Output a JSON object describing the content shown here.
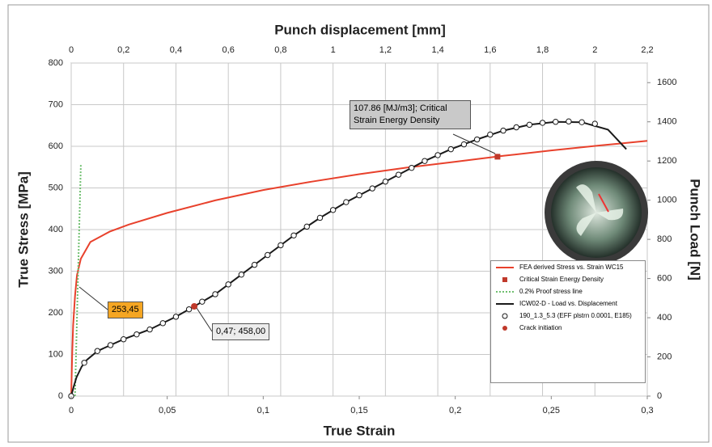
{
  "chart_data": {
    "type": "line",
    "title": "Punch displacement [mm]",
    "x_label": "True Strain",
    "y_label": "True Stress [MPa]",
    "y2_label": "Punch Load [N]",
    "xlim": [
      0,
      0.3
    ],
    "xticks": [
      0,
      {
        "value": 0.05,
        "label": "0,05"
      },
      {
        "value": 0.1,
        "label": "0,1"
      },
      {
        "value": 0.15,
        "label": "0,15"
      },
      {
        "value": 0.2,
        "label": "0,2"
      },
      {
        "value": 0.25,
        "label": "0,25"
      },
      {
        "value": 0.3,
        "label": "0,3"
      }
    ],
    "x2lim": [
      0,
      2.2
    ],
    "x2ticks": [
      0,
      {
        "value": 0.2,
        "label": "0,2"
      },
      {
        "value": 0.4,
        "label": "0,4"
      },
      {
        "value": 0.6,
        "label": "0,6"
      },
      {
        "value": 0.8,
        "label": "0,8"
      },
      1,
      {
        "value": 1.2,
        "label": "1,2"
      },
      {
        "value": 1.4,
        "label": "1,4"
      },
      {
        "value": 1.6,
        "label": "1,6"
      },
      {
        "value": 1.8,
        "label": "1,8"
      },
      2,
      {
        "value": 2.2,
        "label": "2,2"
      }
    ],
    "ylim": [
      0,
      800
    ],
    "yticks": [
      0,
      100,
      200,
      300,
      400,
      500,
      600,
      700,
      800
    ],
    "y2lim": [
      0,
      1700
    ],
    "y2ticks": [
      0,
      200,
      400,
      600,
      800,
      1000,
      1200,
      1400,
      1600
    ],
    "grid": true,
    "legend": "lower right",
    "series": [
      {
        "name": "FEA derived Stress vs. Strain WC15",
        "style": "line",
        "color": "#e8412c",
        "x": [
          0,
          0.0005,
          0.001,
          0.002,
          0.003,
          0.005,
          0.01,
          0.02,
          0.03,
          0.05,
          0.075,
          0.1,
          0.125,
          0.15,
          0.175,
          0.2,
          0.225,
          0.25,
          0.275,
          0.3
        ],
        "values": [
          0,
          100,
          170,
          240,
          290,
          330,
          370,
          395,
          412,
          440,
          470,
          495,
          515,
          533,
          549,
          563,
          577,
          590,
          602,
          613
        ]
      },
      {
        "name": "Critical Strain Energy Density",
        "style": "square",
        "color": "#c0392b",
        "x": [
          0.222
        ],
        "values": [
          575
        ]
      },
      {
        "name": "0.2% Proof stress line",
        "style": "dotted",
        "color": "#6fbf6f",
        "x": [
          0.002,
          0.005
        ],
        "values": [
          0,
          555
        ]
      },
      {
        "name": "ICW02-D - Load vs. Displacement",
        "style": "line",
        "color": "#1a1a1a",
        "xaxis": "x2",
        "axis": "y2",
        "x": [
          0,
          0.01,
          0.02,
          0.04,
          0.06,
          0.1,
          0.15,
          0.2,
          0.3,
          0.4,
          0.47,
          0.55,
          0.65,
          0.75,
          0.85,
          0.95,
          1.05,
          1.15,
          1.25,
          1.35,
          1.45,
          1.55,
          1.65,
          1.75,
          1.85,
          1.95,
          2.05,
          2.12
        ],
        "values": [
          0,
          50,
          95,
          150,
          185,
          230,
          260,
          290,
          340,
          405,
          458,
          520,
          620,
          720,
          820,
          910,
          990,
          1060,
          1130,
          1200,
          1260,
          1310,
          1355,
          1385,
          1400,
          1398,
          1360,
          1260
        ]
      },
      {
        "name": "190_1.3_5.3 (EFF plstrn 0.0001, E185)",
        "style": "circles",
        "color": "#1a1a1a",
        "xaxis": "x2",
        "axis": "y2",
        "x": [
          0,
          0.05,
          0.1,
          0.15,
          0.2,
          0.25,
          0.3,
          0.35,
          0.4,
          0.45,
          0.5,
          0.55,
          0.6,
          0.65,
          0.7,
          0.75,
          0.8,
          0.85,
          0.9,
          0.95,
          1,
          1.05,
          1.1,
          1.15,
          1.2,
          1.25,
          1.3,
          1.35,
          1.4,
          1.45,
          1.5,
          1.55,
          1.6,
          1.65,
          1.7,
          1.75,
          1.8,
          1.85,
          1.9,
          1.95,
          2
        ],
        "values": [
          0,
          170,
          230,
          260,
          290,
          315,
          340,
          372,
          405,
          443,
          482,
          520,
          570,
          620,
          670,
          720,
          770,
          820,
          865,
          910,
          950,
          990,
          1025,
          1060,
          1095,
          1130,
          1165,
          1200,
          1230,
          1260,
          1285,
          1310,
          1335,
          1355,
          1372,
          1385,
          1395,
          1400,
          1402,
          1398,
          1390
        ]
      },
      {
        "name": "Crack initiation",
        "style": "dot",
        "color": "#c0392b",
        "xaxis": "x2",
        "axis": "y2",
        "x": [
          0.47
        ],
        "values": [
          458
        ]
      }
    ],
    "annotations": [
      "253,45",
      "0,47; 458,00",
      "107.86 [MJ/m3]; Critical Strain Energy Density"
    ]
  }
}
